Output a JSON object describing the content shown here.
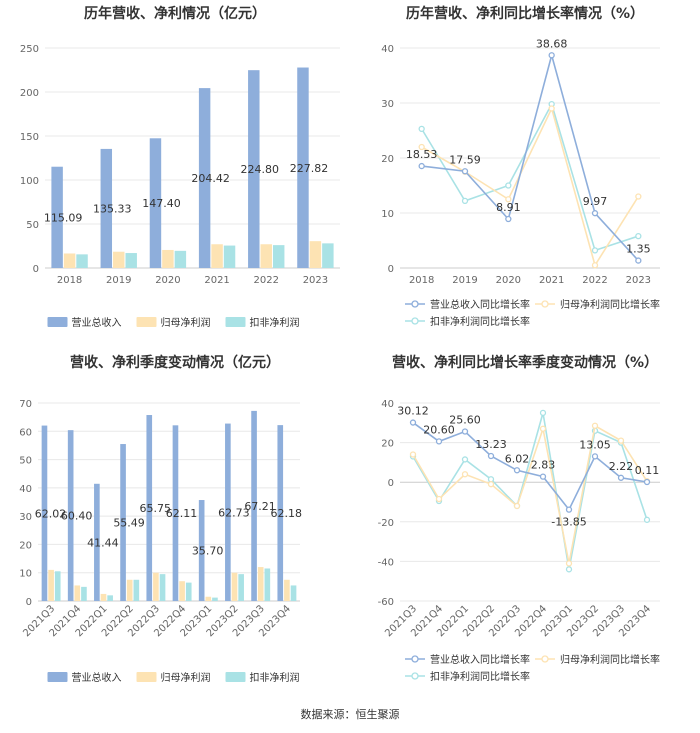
{
  "source": "数据来源：恒生聚源",
  "chart_data": [
    {
      "type": "bar",
      "title": "历年营收、净利情况（亿元）",
      "categories": [
        "2018",
        "2019",
        "2020",
        "2021",
        "2022",
        "2023"
      ],
      "ylim": [
        0,
        250
      ],
      "yticks": [
        0,
        50,
        100,
        150,
        200,
        250
      ],
      "legend_position": "bottom",
      "grid": true,
      "series": [
        {
          "name": "营业总收入",
          "color": "#8eaedb",
          "values": [
            115.09,
            135.33,
            147.4,
            204.42,
            224.8,
            227.82
          ],
          "labels": [
            "115.09",
            "135.33",
            "147.40",
            "204.42",
            "224.80",
            "227.82"
          ]
        },
        {
          "name": "归母净利润",
          "color": "#fde3b3",
          "values": [
            16.5,
            18.5,
            20.5,
            27.0,
            27.0,
            30.5
          ]
        },
        {
          "name": "扣非净利润",
          "color": "#a9e2e5",
          "values": [
            15.5,
            17.0,
            19.5,
            25.5,
            26.0,
            28.0
          ]
        }
      ]
    },
    {
      "type": "line",
      "title": "历年营收、净利同比增长率情况（%）",
      "categories": [
        "2018",
        "2019",
        "2020",
        "2021",
        "2022",
        "2023"
      ],
      "ylim": [
        0,
        40
      ],
      "yticks": [
        0,
        10,
        20,
        30,
        40
      ],
      "legend_position": "bottom",
      "grid": true,
      "series": [
        {
          "name": "营业总收入同比增长率",
          "color": "#8eaedb",
          "values": [
            18.53,
            17.59,
            8.91,
            38.68,
            9.97,
            1.35
          ],
          "labels": [
            "18.53",
            "17.59",
            "8.91",
            "38.68",
            "9.97",
            "1.35"
          ]
        },
        {
          "name": "归母净利润同比增长率",
          "color": "#fde3b3",
          "values": [
            22.0,
            17.5,
            12.5,
            29.0,
            0.5,
            13.0
          ]
        },
        {
          "name": "扣非净利润同比增长率",
          "color": "#a9e2e5",
          "values": [
            25.3,
            12.2,
            15.0,
            29.8,
            3.2,
            5.8
          ]
        }
      ]
    },
    {
      "type": "bar",
      "title": "营收、净利季度变动情况（亿元）",
      "categories": [
        "2021Q3",
        "2021Q4",
        "2022Q1",
        "2022Q2",
        "2022Q3",
        "2022Q4",
        "2023Q1",
        "2023Q2",
        "2023Q3",
        "2023Q4"
      ],
      "ylim": [
        0,
        70
      ],
      "yticks": [
        0,
        10,
        20,
        30,
        40,
        50,
        60,
        70
      ],
      "legend_position": "bottom",
      "grid": true,
      "series": [
        {
          "name": "营业总收入",
          "color": "#8eaedb",
          "values": [
            62.02,
            60.4,
            41.44,
            55.49,
            65.75,
            62.11,
            35.7,
            62.73,
            67.21,
            62.18
          ],
          "labels": [
            "62.02",
            "60.40",
            "41.44",
            "55.49",
            "65.75",
            "62.11",
            "35.70",
            "62.73",
            "67.21",
            "62.18"
          ]
        },
        {
          "name": "归母净利润",
          "color": "#fde3b3",
          "values": [
            11.0,
            5.5,
            2.5,
            7.5,
            10.0,
            7.0,
            1.5,
            10.0,
            12.0,
            7.5
          ]
        },
        {
          "name": "扣非净利润",
          "color": "#a9e2e5",
          "values": [
            10.5,
            5.0,
            2.0,
            7.5,
            9.5,
            6.5,
            1.2,
            9.5,
            11.5,
            5.5
          ]
        }
      ]
    },
    {
      "type": "line",
      "title": "营收、净利同比增长率季度变动情况（%）",
      "categories": [
        "2021Q3",
        "2021Q4",
        "2022Q1",
        "2022Q2",
        "2022Q3",
        "2022Q4",
        "2023Q1",
        "2023Q2",
        "2023Q3",
        "2023Q4"
      ],
      "ylim": [
        -60,
        40
      ],
      "yticks": [
        -60,
        -40,
        -20,
        0,
        20,
        40
      ],
      "legend_position": "bottom",
      "grid": true,
      "series": [
        {
          "name": "营业总收入同比增长率",
          "color": "#8eaedb",
          "values": [
            30.12,
            20.6,
            25.6,
            13.23,
            6.02,
            2.83,
            -13.85,
            13.05,
            2.22,
            0.11
          ],
          "labels": [
            "30.12",
            "20.60",
            "25.60",
            "13.23",
            "6.02",
            "2.83",
            "-13.85",
            "13.05",
            "2.22",
            "0.11"
          ]
        },
        {
          "name": "归母净利润同比增长率",
          "color": "#fde3b3",
          "values": [
            14.0,
            -8.5,
            4.0,
            -1.0,
            -12.0,
            27.0,
            -41.0,
            28.5,
            21.0,
            0.5
          ]
        },
        {
          "name": "扣非净利润同比增长率",
          "color": "#a9e2e5",
          "values": [
            13.0,
            -9.5,
            11.5,
            1.5,
            -12.0,
            35.0,
            -44.0,
            26.0,
            20.0,
            -19.0
          ]
        }
      ]
    }
  ]
}
